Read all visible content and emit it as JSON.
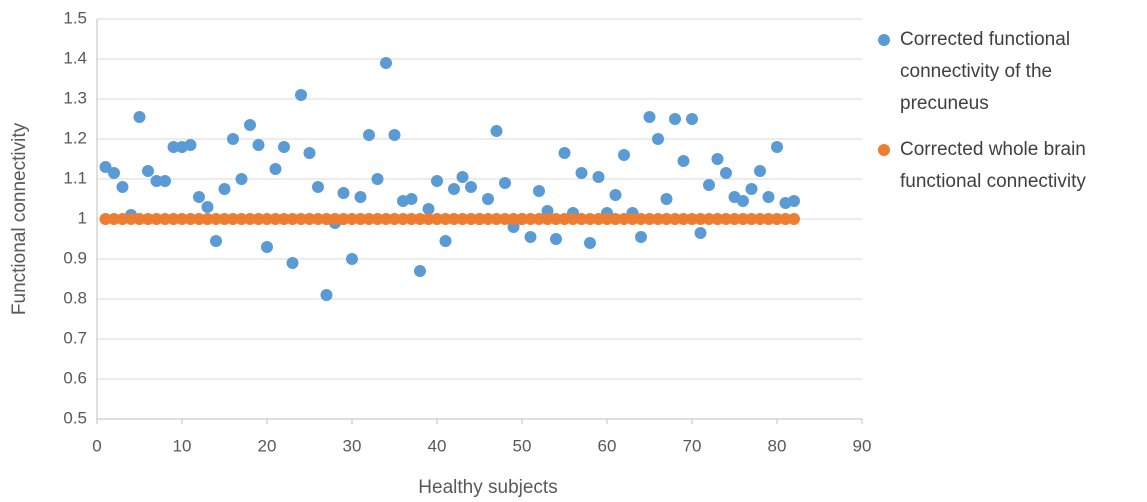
{
  "chart_data": {
    "type": "scatter",
    "x_label": "Healthy subjects",
    "y_label": "Functional connectivity",
    "x": [
      1,
      2,
      3,
      4,
      5,
      6,
      7,
      8,
      9,
      10,
      11,
      12,
      13,
      14,
      15,
      16,
      17,
      18,
      19,
      20,
      21,
      22,
      23,
      24,
      25,
      26,
      27,
      28,
      29,
      30,
      31,
      32,
      33,
      34,
      35,
      36,
      37,
      38,
      39,
      40,
      41,
      42,
      43,
      44,
      45,
      46,
      47,
      48,
      49,
      50,
      51,
      52,
      53,
      54,
      55,
      56,
      57,
      58,
      59,
      60,
      61,
      62,
      63,
      64,
      65,
      66,
      67,
      68,
      69,
      70,
      71,
      72,
      73,
      74,
      75,
      76,
      77,
      78,
      79,
      80,
      81,
      82
    ],
    "series": [
      {
        "name": "Corrected functional connectivity of the precuneus",
        "color": "#5b9bd5",
        "values": [
          1.13,
          1.115,
          1.08,
          1.01,
          1.255,
          1.12,
          1.095,
          1.095,
          1.18,
          1.18,
          1.185,
          1.055,
          1.03,
          0.945,
          1.075,
          1.2,
          1.1,
          1.235,
          1.185,
          0.93,
          1.125,
          1.18,
          0.89,
          1.31,
          1.165,
          1.08,
          0.81,
          0.99,
          1.065,
          0.9,
          1.055,
          1.21,
          1.1,
          1.39,
          1.21,
          1.045,
          1.05,
          0.87,
          1.025,
          1.095,
          0.945,
          1.075,
          1.105,
          1.08,
          1.0,
          1.05,
          1.22,
          1.09,
          0.98,
          1.0,
          0.955,
          1.07,
          1.02,
          0.95,
          1.165,
          1.015,
          1.115,
          0.94,
          1.105,
          1.015,
          1.06,
          1.16,
          1.015,
          0.955,
          1.255,
          1.2,
          1.05,
          1.25,
          1.145,
          1.25,
          0.965,
          1.085,
          1.15,
          1.115,
          1.055,
          1.045,
          1.075,
          1.12,
          1.055,
          1.18,
          1.04,
          1.045
        ]
      },
      {
        "name": "Corrected whole brain functional connectivity",
        "color": "#ed7d31",
        "values": [
          1,
          1,
          1,
          1,
          1,
          1,
          1,
          1,
          1,
          1,
          1,
          1,
          1,
          1,
          1,
          1,
          1,
          1,
          1,
          1,
          1,
          1,
          1,
          1,
          1,
          1,
          1,
          1,
          1,
          1,
          1,
          1,
          1,
          1,
          1,
          1,
          1,
          1,
          1,
          1,
          1,
          1,
          1,
          1,
          1,
          1,
          1,
          1,
          1,
          1,
          1,
          1,
          1,
          1,
          1,
          1,
          1,
          1,
          1,
          1,
          1,
          1,
          1,
          1,
          1,
          1,
          1,
          1,
          1,
          1,
          1,
          1,
          1,
          1,
          1,
          1,
          1,
          1,
          1,
          1,
          1,
          1
        ]
      }
    ],
    "xlim": [
      0,
      90
    ],
    "xticks": [
      0,
      10,
      20,
      30,
      40,
      50,
      60,
      70,
      80,
      90
    ],
    "ylim": [
      0.5,
      1.5
    ],
    "yticks": [
      0.5,
      0.6,
      0.7,
      0.8,
      0.9,
      1,
      1.1,
      1.2,
      1.3,
      1.4,
      1.5
    ],
    "grid": true,
    "legend": "right"
  }
}
